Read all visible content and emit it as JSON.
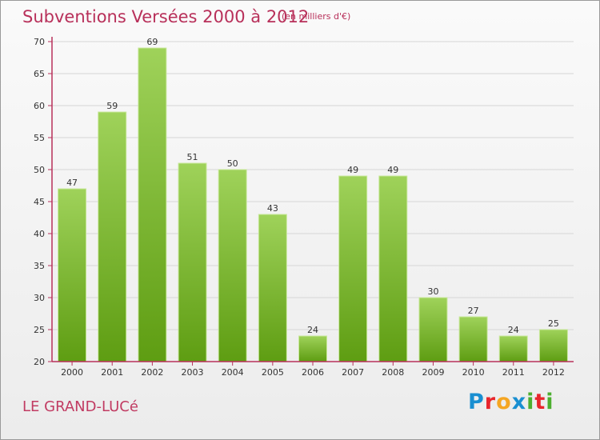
{
  "header": {
    "title": "Subventions Versées 2000 à 2012",
    "subtitle": "(en milliers d'€)"
  },
  "footer": {
    "commune": "LE GRAND-LUCé",
    "logo_letters": [
      {
        "char": "P",
        "color": "#1a8fd1"
      },
      {
        "char": "r",
        "color": "#e8262c"
      },
      {
        "char": "o",
        "color": "#f5a623"
      },
      {
        "char": "x",
        "color": "#1a8fd1"
      },
      {
        "char": "i",
        "color": "#4caf2f"
      },
      {
        "char": "t",
        "color": "#e8262c"
      },
      {
        "char": "i",
        "color": "#4caf2f"
      }
    ]
  },
  "colors": {
    "title": "#b8305a",
    "bar_top": "#9fd25a",
    "bar_bottom": "#5e9d12",
    "axis": "#b8305a",
    "grid": "#d6d6d6"
  },
  "chart_data": {
    "type": "bar",
    "title": "Subventions Versées 2000 à 2012",
    "subtitle": "(en milliers d'€)",
    "xlabel": "",
    "ylabel": "",
    "categories": [
      "2000",
      "2001",
      "2002",
      "2003",
      "2004",
      "2005",
      "2006",
      "2007",
      "2008",
      "2009",
      "2010",
      "2011",
      "2012"
    ],
    "values": [
      47,
      59,
      69,
      51,
      50,
      43,
      24,
      49,
      49,
      30,
      27,
      24,
      25
    ],
    "ylim": [
      20,
      70
    ],
    "yticks": [
      20,
      25,
      30,
      35,
      40,
      45,
      50,
      55,
      60,
      65,
      70
    ],
    "grid": true,
    "data_labels": true
  }
}
